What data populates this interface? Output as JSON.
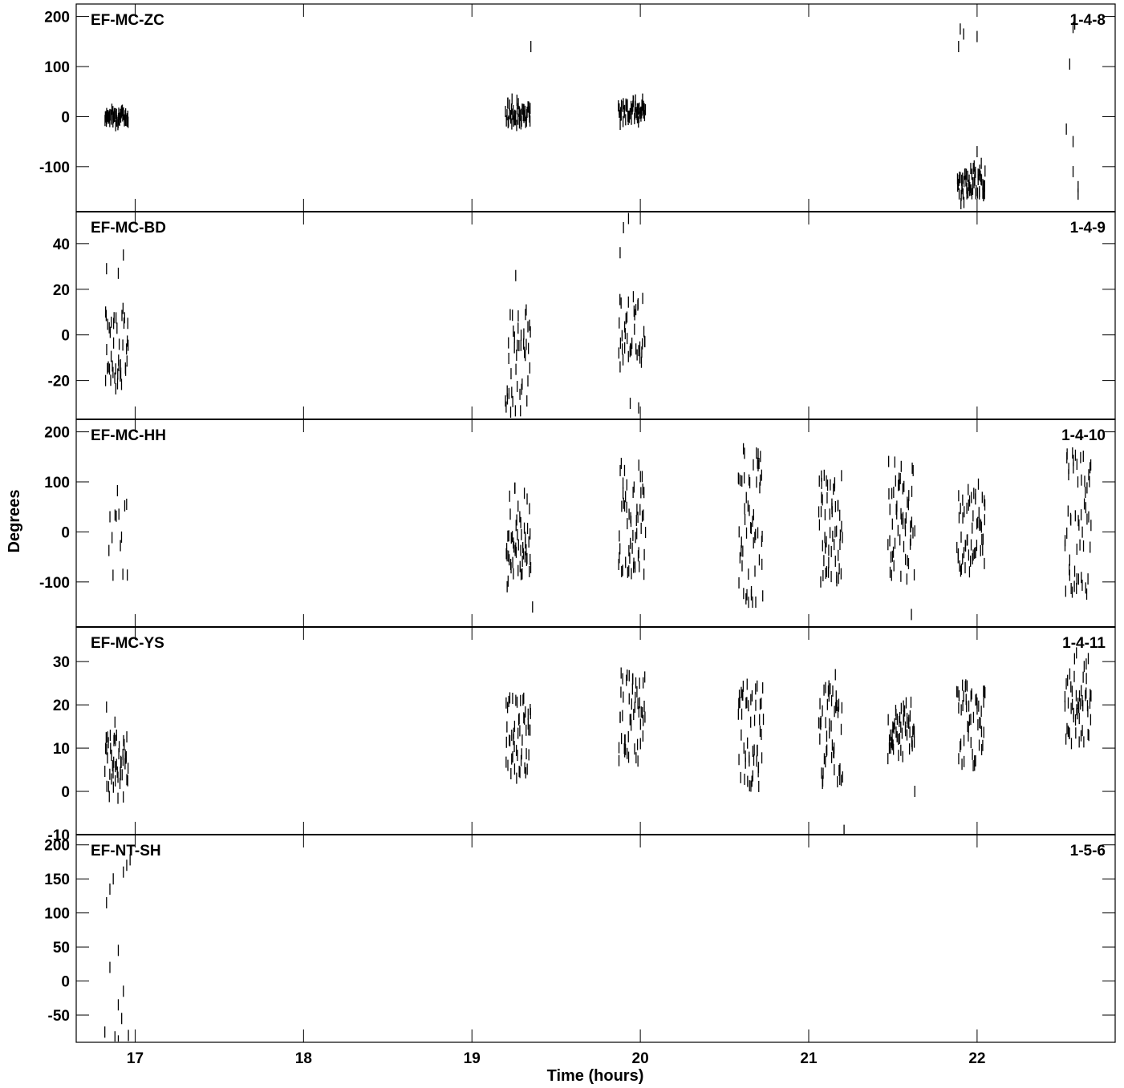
{
  "chart_data": {
    "type": "scatter",
    "ylabel": "Degrees",
    "xlabel": "Time (hours)",
    "xlim": [
      16.65,
      22.82
    ],
    "xticks": [
      17,
      18,
      19,
      20,
      21,
      22
    ],
    "grid": false,
    "panels": [
      {
        "label": "EF-MC-ZC",
        "id": "1-4-8",
        "ylim": [
          -190,
          225
        ],
        "yticks": [
          200,
          100,
          0,
          -100
        ],
        "clusters": [
          {
            "t0": 16.82,
            "t1": 16.96,
            "n": 60,
            "ymin": -20,
            "ymax": 20,
            "mode": "centered"
          },
          {
            "t0": 19.2,
            "t1": 19.35,
            "n": 52,
            "ymin": -30,
            "ymax": 45,
            "mode": "centered"
          },
          {
            "t0": 19.87,
            "t1": 20.03,
            "n": 58,
            "ymin": -20,
            "ymax": 45,
            "mode": "centered"
          },
          {
            "t0": 21.88,
            "t1": 22.05,
            "n": 60,
            "ymin": -185,
            "ymax": -80,
            "mode": "centered"
          }
        ],
        "points": [
          [
            19.35,
            140
          ],
          [
            21.9,
            175
          ],
          [
            21.92,
            165
          ],
          [
            21.89,
            140
          ],
          [
            22.0,
            160
          ],
          [
            22.0,
            -70
          ],
          [
            22.55,
            105
          ],
          [
            22.57,
            178
          ],
          [
            22.58,
            185
          ],
          [
            22.53,
            -25
          ],
          [
            22.57,
            -50
          ],
          [
            22.57,
            -110
          ],
          [
            22.6,
            -140
          ],
          [
            22.6,
            -155
          ]
        ]
      },
      {
        "label": "EF-MC-BD",
        "id": "1-4-9",
        "ylim": [
          -37,
          54
        ],
        "yticks": [
          40,
          20,
          0,
          -20
        ],
        "clusters": [
          {
            "t0": 16.82,
            "t1": 16.96,
            "n": 44,
            "ymin": -24,
            "ymax": 14,
            "mode": "spread"
          },
          {
            "t0": 19.2,
            "t1": 19.35,
            "n": 44,
            "ymin": -34,
            "ymax": 12,
            "mode": "spread"
          },
          {
            "t0": 19.87,
            "t1": 20.03,
            "n": 40,
            "ymin": -12,
            "ymax": 18,
            "mode": "spread"
          }
        ],
        "points": [
          [
            16.83,
            29
          ],
          [
            16.9,
            27
          ],
          [
            16.93,
            35
          ],
          [
            19.26,
            26
          ],
          [
            19.9,
            47
          ],
          [
            19.93,
            51
          ],
          [
            19.88,
            36
          ],
          [
            19.94,
            -30
          ],
          [
            19.99,
            -32
          ],
          [
            19.88,
            -14
          ]
        ]
      },
      {
        "label": "EF-MC-HH",
        "id": "1-4-10",
        "ylim": [
          -190,
          225
        ],
        "yticks": [
          200,
          100,
          0,
          -100
        ],
        "clusters": [
          {
            "t0": 16.84,
            "t1": 16.96,
            "n": 14,
            "ymin": -90,
            "ymax": 90,
            "mode": "spread"
          },
          {
            "t0": 19.2,
            "t1": 19.35,
            "n": 56,
            "ymin": -110,
            "ymax": 90,
            "mode": "spread"
          },
          {
            "t0": 19.87,
            "t1": 20.03,
            "n": 56,
            "ymin": -85,
            "ymax": 140,
            "mode": "spread"
          },
          {
            "t0": 20.58,
            "t1": 20.73,
            "n": 56,
            "ymin": -150,
            "ymax": 175,
            "mode": "spread"
          },
          {
            "t0": 21.06,
            "t1": 21.2,
            "n": 56,
            "ymin": -100,
            "ymax": 115,
            "mode": "spread"
          },
          {
            "t0": 21.47,
            "t1": 21.63,
            "n": 56,
            "ymin": -95,
            "ymax": 150,
            "mode": "spread"
          },
          {
            "t0": 21.88,
            "t1": 22.05,
            "n": 56,
            "ymin": -80,
            "ymax": 100,
            "mode": "spread"
          },
          {
            "t0": 22.52,
            "t1": 22.68,
            "n": 56,
            "ymin": -125,
            "ymax": 160,
            "mode": "spread"
          }
        ],
        "points": [
          [
            19.36,
            -150
          ],
          [
            21.61,
            -165
          ]
        ]
      },
      {
        "label": "EF-MC-YS",
        "id": "1-4-11",
        "ylim": [
          -10,
          38
        ],
        "yticks": [
          30,
          20,
          10,
          0,
          -10
        ],
        "clusters": [
          {
            "t0": 16.82,
            "t1": 16.96,
            "n": 50,
            "ymin": -2,
            "ymax": 13,
            "mode": "spread"
          },
          {
            "t0": 19.2,
            "t1": 19.35,
            "n": 52,
            "ymin": 3,
            "ymax": 22,
            "mode": "spread"
          },
          {
            "t0": 19.87,
            "t1": 20.03,
            "n": 52,
            "ymin": 6,
            "ymax": 28,
            "mode": "spread"
          },
          {
            "t0": 20.58,
            "t1": 20.73,
            "n": 52,
            "ymin": 1,
            "ymax": 25,
            "mode": "spread"
          },
          {
            "t0": 21.06,
            "t1": 21.2,
            "n": 52,
            "ymin": 1,
            "ymax": 27,
            "mode": "spread"
          },
          {
            "t0": 21.47,
            "t1": 21.63,
            "n": 52,
            "ymin": 7,
            "ymax": 21,
            "mode": "spread"
          },
          {
            "t0": 21.88,
            "t1": 22.05,
            "n": 52,
            "ymin": 5,
            "ymax": 25,
            "mode": "spread"
          },
          {
            "t0": 22.52,
            "t1": 22.68,
            "n": 52,
            "ymin": 10,
            "ymax": 31,
            "mode": "spread"
          }
        ],
        "points": [
          [
            16.83,
            19.5
          ],
          [
            16.88,
            16
          ],
          [
            21.21,
            -9
          ],
          [
            21.63,
            0
          ],
          [
            22.59,
            32
          ]
        ]
      },
      {
        "label": "EF-NT-SH",
        "id": "1-5-6",
        "ylim": [
          -90,
          215
        ],
        "yticks": [
          200,
          150,
          100,
          50,
          0,
          -50
        ],
        "clusters": [],
        "points": [
          [
            16.83,
            115
          ],
          [
            16.85,
            135
          ],
          [
            16.87,
            150
          ],
          [
            16.93,
            160
          ],
          [
            16.95,
            170
          ],
          [
            16.97,
            178
          ],
          [
            16.85,
            20
          ],
          [
            16.9,
            45
          ],
          [
            16.93,
            -15
          ],
          [
            16.9,
            -35
          ],
          [
            16.92,
            -55
          ],
          [
            16.82,
            -75
          ],
          [
            16.88,
            -82
          ],
          [
            16.9,
            -88
          ],
          [
            16.96,
            -80
          ]
        ]
      }
    ]
  }
}
